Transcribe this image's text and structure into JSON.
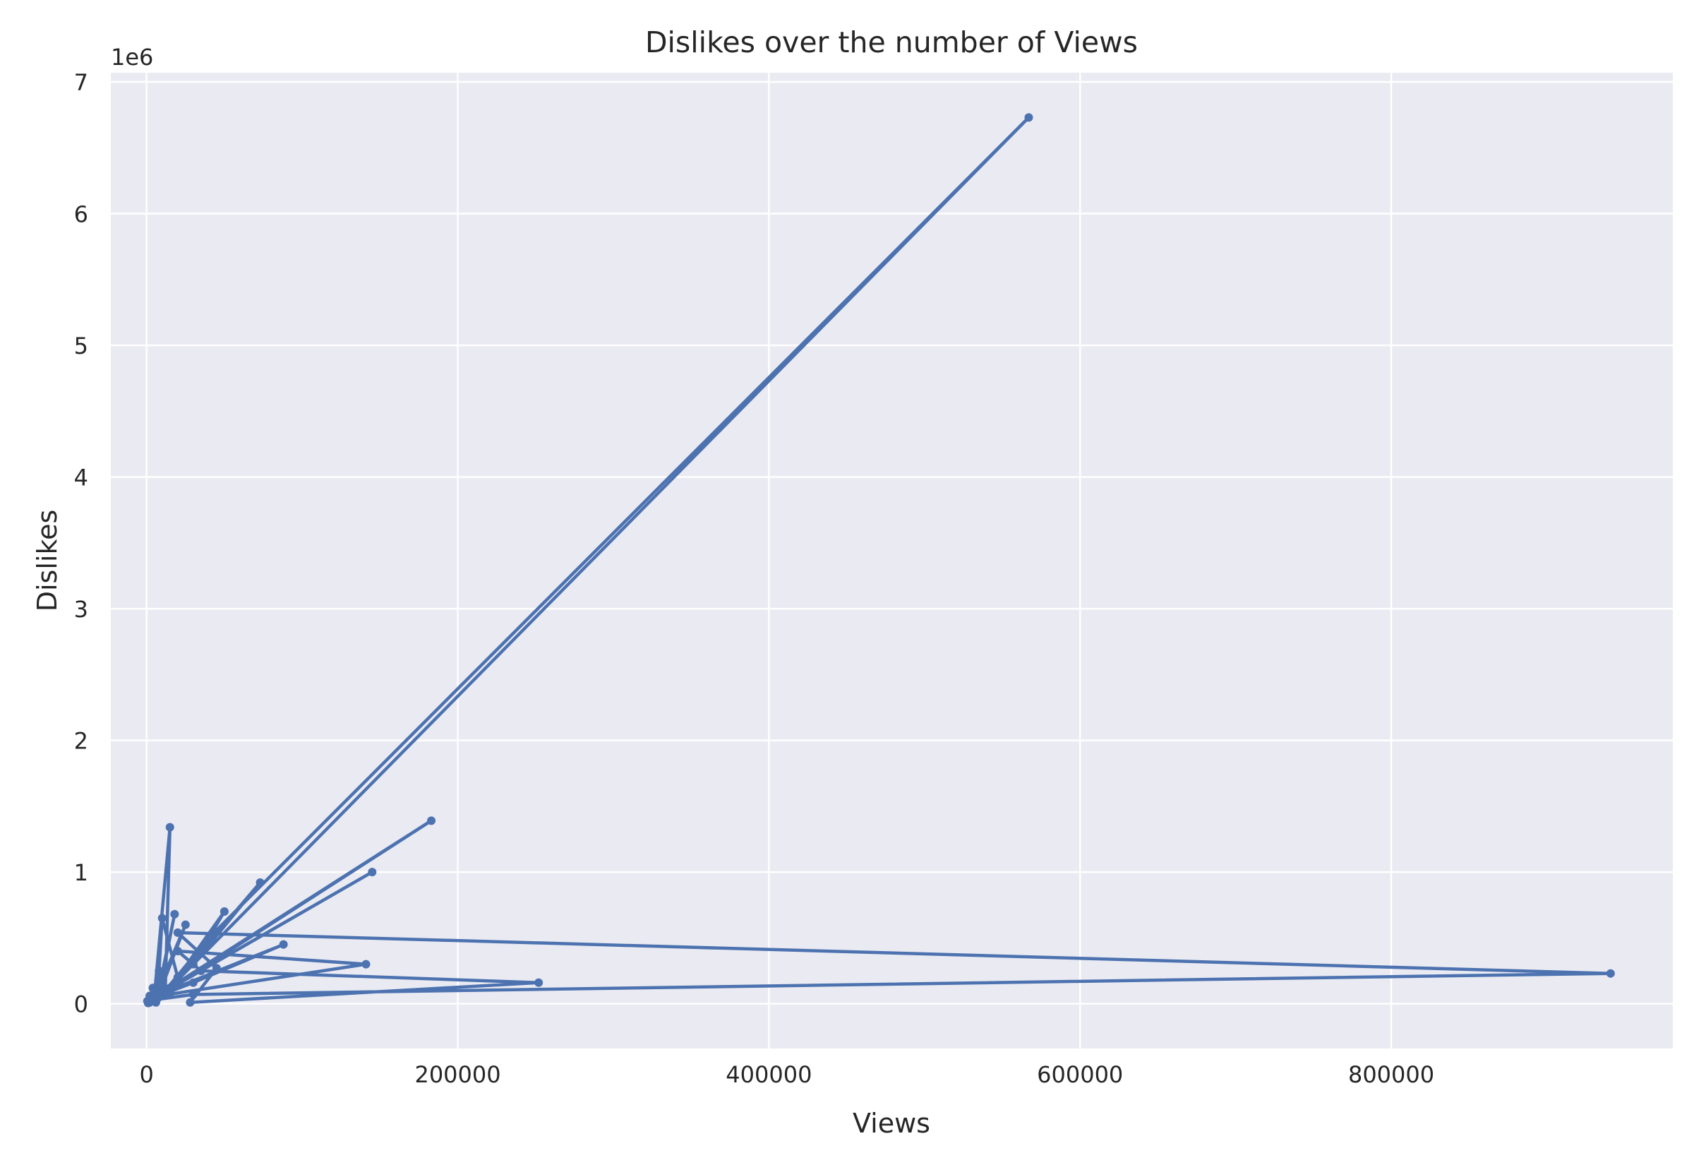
{
  "chart_data": {
    "type": "line",
    "title": "Dislikes over the number of Views",
    "xlabel": "Views",
    "ylabel": "Dislikes",
    "y_offset_label": "1e6",
    "xlim": [
      -23000,
      981000
    ],
    "ylim": [
      -340000,
      7070000
    ],
    "x_ticks": [
      0,
      200000,
      400000,
      600000,
      800000
    ],
    "x_tick_labels": [
      "0",
      "200000",
      "400000",
      "600000",
      "800000"
    ],
    "y_ticks": [
      0,
      1000000,
      2000000,
      3000000,
      4000000,
      5000000,
      6000000,
      7000000
    ],
    "y_tick_labels": [
      "0",
      "1",
      "2",
      "3",
      "4",
      "5",
      "6",
      "7"
    ],
    "grid": true,
    "background_color": "#eaeaf2",
    "grid_color": "#ffffff",
    "series_color": "#4c72b0",
    "series": [
      {
        "points": [
          [
            500,
            20000
          ],
          [
            2000,
            60000
          ],
          [
            1200,
            15000
          ],
          [
            4000,
            120000
          ],
          [
            3000,
            30000
          ],
          [
            8000,
            250000
          ],
          [
            5000,
            60000
          ],
          [
            15000,
            1340000
          ],
          [
            12000,
            90000
          ],
          [
            6000,
            10000
          ],
          [
            18000,
            680000
          ],
          [
            9000,
            150000
          ],
          [
            25000,
            600000
          ],
          [
            7000,
            40000
          ],
          [
            10000,
            650000
          ],
          [
            20000,
            200000
          ],
          [
            50000,
            700000
          ],
          [
            30000,
            300000
          ],
          [
            73000,
            920000
          ],
          [
            15000,
            120000
          ],
          [
            567000,
            6730000
          ],
          [
            40000,
            500000
          ],
          [
            12000,
            100000
          ],
          [
            183000,
            1390000
          ],
          [
            20000,
            150000
          ],
          [
            145000,
            1000000
          ],
          [
            10000,
            80000
          ],
          [
            88000,
            450000
          ],
          [
            30000,
            160000
          ],
          [
            8000,
            60000
          ],
          [
            141000,
            300000
          ],
          [
            20000,
            400000
          ],
          [
            35000,
            250000
          ],
          [
            252000,
            160000
          ],
          [
            28000,
            10000
          ],
          [
            45000,
            270000
          ],
          [
            20000,
            540000
          ],
          [
            941000,
            230000
          ],
          [
            30000,
            70000
          ],
          [
            5000,
            30000
          ],
          [
            15000,
            80000
          ],
          [
            2000,
            10000
          ],
          [
            6000,
            40000
          ],
          [
            1000,
            5000
          ]
        ]
      }
    ]
  }
}
